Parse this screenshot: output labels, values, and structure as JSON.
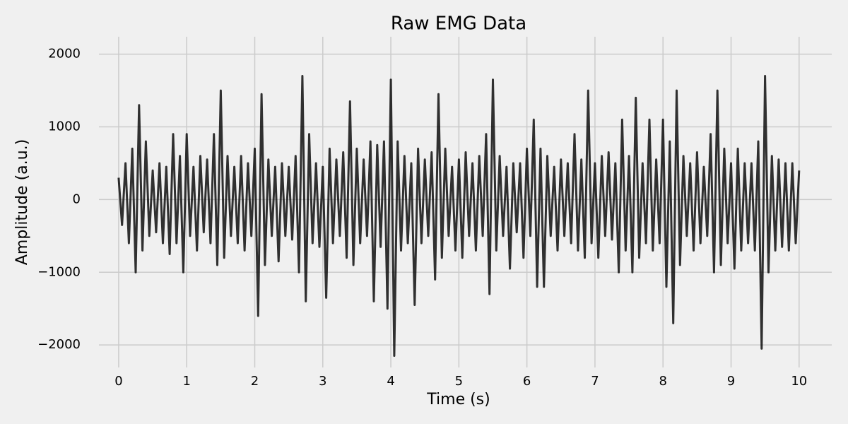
{
  "chart_data": {
    "type": "line",
    "title": "Raw EMG Data",
    "x_label": "Time (s)",
    "y_label": "Amplitude (a.u.)",
    "x": [
      0,
      0.05,
      0.1,
      0.15,
      0.2,
      0.25,
      0.3,
      0.35,
      0.4,
      0.45,
      0.5,
      0.55,
      0.6,
      0.65,
      0.7,
      0.75,
      0.8,
      0.85,
      0.9,
      0.95,
      1,
      1.05,
      1.1,
      1.15,
      1.2,
      1.25,
      1.3,
      1.35,
      1.4,
      1.45,
      1.5,
      1.55,
      1.6,
      1.65,
      1.7,
      1.75,
      1.8,
      1.85,
      1.9,
      1.95,
      2,
      2.05,
      2.1,
      2.15,
      2.2,
      2.25,
      2.3,
      2.35,
      2.4,
      2.45,
      2.5,
      2.55,
      2.6,
      2.65,
      2.7,
      2.75,
      2.8,
      2.85,
      2.9,
      2.95,
      3,
      3.05,
      3.1,
      3.15,
      3.2,
      3.25,
      3.3,
      3.35,
      3.4,
      3.45,
      3.5,
      3.55,
      3.6,
      3.65,
      3.7,
      3.75,
      3.8,
      3.85,
      3.9,
      3.95,
      4,
      4.05,
      4.1,
      4.15,
      4.2,
      4.25,
      4.3,
      4.35,
      4.4,
      4.45,
      4.5,
      4.55,
      4.6,
      4.65,
      4.7,
      4.75,
      4.8,
      4.85,
      4.9,
      4.95,
      5,
      5.05,
      5.1,
      5.15,
      5.2,
      5.25,
      5.3,
      5.35,
      5.4,
      5.45,
      5.5,
      5.55,
      5.6,
      5.65,
      5.7,
      5.75,
      5.8,
      5.85,
      5.9,
      5.95,
      6,
      6.05,
      6.1,
      6.15,
      6.2,
      6.25,
      6.3,
      6.35,
      6.4,
      6.45,
      6.5,
      6.55,
      6.6,
      6.65,
      6.7,
      6.75,
      6.8,
      6.85,
      6.9,
      6.95,
      7,
      7.05,
      7.1,
      7.15,
      7.2,
      7.25,
      7.3,
      7.35,
      7.4,
      7.45,
      7.5,
      7.55,
      7.6,
      7.65,
      7.7,
      7.75,
      7.8,
      7.85,
      7.9,
      7.95,
      8,
      8.05,
      8.1,
      8.15,
      8.2,
      8.25,
      8.3,
      8.35,
      8.4,
      8.45,
      8.5,
      8.55,
      8.6,
      8.65,
      8.7,
      8.75,
      8.8,
      8.85,
      8.9,
      8.95,
      9,
      9.05,
      9.1,
      9.15,
      9.2,
      9.25,
      9.3,
      9.35,
      9.4,
      9.45,
      9.5,
      9.55,
      9.6,
      9.65,
      9.7,
      9.75,
      9.8,
      9.85,
      9.9,
      9.95,
      10
    ],
    "series": [
      {
        "color": "#000000",
        "values": [
          300,
          -350,
          500,
          -600,
          700,
          -1000,
          1300,
          -700,
          800,
          -500,
          400,
          -450,
          500,
          -600,
          450,
          -750,
          900,
          -600,
          600,
          -1000,
          900,
          -500,
          450,
          -700,
          600,
          -450,
          550,
          -600,
          900,
          -900,
          1500,
          -800,
          600,
          -500,
          450,
          -600,
          600,
          -700,
          500,
          -500,
          700,
          -1600,
          1450,
          -900,
          550,
          -500,
          450,
          -850,
          500,
          -500,
          450,
          -550,
          600,
          -1000,
          1700,
          -1400,
          900,
          -600,
          500,
          -650,
          450,
          -1350,
          700,
          -600,
          550,
          -500,
          650,
          -800,
          1350,
          -900,
          700,
          -600,
          550,
          -500,
          800,
          -1400,
          750,
          -650,
          800,
          -1500,
          1650,
          -2150,
          800,
          -700,
          600,
          -600,
          500,
          -1450,
          700,
          -600,
          550,
          -500,
          650,
          -1100,
          1450,
          -800,
          700,
          -500,
          450,
          -700,
          550,
          -800,
          650,
          -500,
          500,
          -700,
          600,
          -500,
          900,
          -1300,
          1650,
          -700,
          600,
          -500,
          450,
          -950,
          500,
          -450,
          500,
          -800,
          700,
          -500,
          1100,
          -1200,
          700,
          -1200,
          600,
          -500,
          450,
          -700,
          550,
          -500,
          500,
          -600,
          900,
          -700,
          550,
          -800,
          1500,
          -600,
          500,
          -800,
          600,
          -500,
          650,
          -550,
          500,
          -1000,
          1100,
          -700,
          600,
          -1000,
          1400,
          -800,
          500,
          -600,
          1100,
          -700,
          550,
          -600,
          1100,
          -1200,
          800,
          -1700,
          1500,
          -900,
          600,
          -500,
          500,
          -700,
          650,
          -600,
          450,
          -500,
          900,
          -1000,
          1500,
          -900,
          700,
          -600,
          500,
          -950,
          700,
          -700,
          500,
          -600,
          500,
          -700,
          800,
          -2050,
          1700,
          -1000,
          600,
          -700,
          550,
          -650,
          500,
          -700,
          500,
          -600,
          400
        ]
      }
    ],
    "xlim": [
      -0.29,
      10.48
    ],
    "ylim": [
      -2310,
      2240
    ],
    "xticks": [
      0,
      1,
      2,
      3,
      4,
      5,
      6,
      7,
      8,
      9,
      10
    ],
    "yticks": [
      {
        "value": -2000,
        "label": "−2000"
      },
      {
        "value": -1000,
        "label": "−1000"
      },
      0,
      1000,
      2000
    ],
    "grid": true
  }
}
